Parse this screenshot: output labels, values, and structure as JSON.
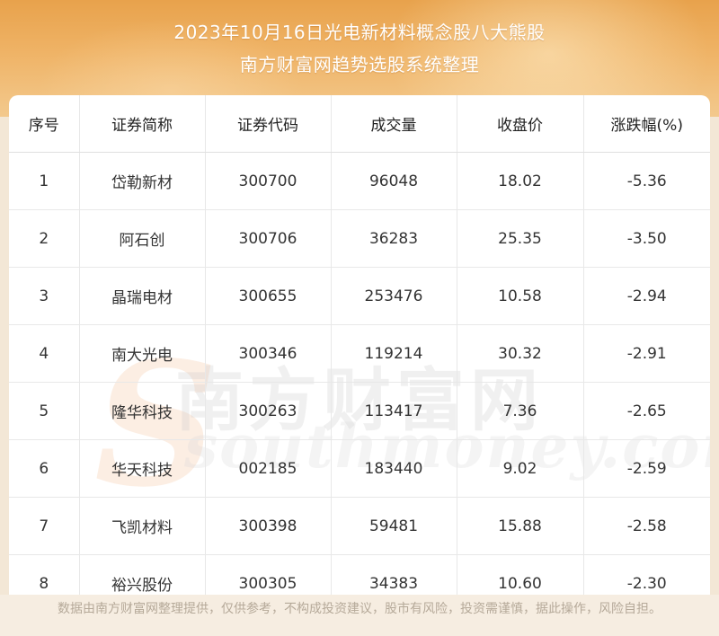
{
  "header": {
    "title_line1": "2023年10月16日光电新材料概念股八大熊股",
    "title_line2": "南方财富网趋势选股系统整理"
  },
  "table": {
    "columns": [
      "序号",
      "证券简称",
      "证券代码",
      "成交量",
      "收盘价",
      "涨跌幅(%)"
    ],
    "rows": [
      [
        "1",
        "岱勒新材",
        "300700",
        "96048",
        "18.02",
        "-5.36"
      ],
      [
        "2",
        "阿石创",
        "300706",
        "36283",
        "25.35",
        "-3.50"
      ],
      [
        "3",
        "晶瑞电材",
        "300655",
        "253476",
        "10.58",
        "-2.94"
      ],
      [
        "4",
        "南大光电",
        "300346",
        "119214",
        "30.32",
        "-2.91"
      ],
      [
        "5",
        "隆华科技",
        "300263",
        "113417",
        "7.36",
        "-2.65"
      ],
      [
        "6",
        "华天科技",
        "002185",
        "183440",
        "9.02",
        "-2.59"
      ],
      [
        "7",
        "飞凯材料",
        "300398",
        "59481",
        "15.88",
        "-2.58"
      ],
      [
        "8",
        "裕兴股份",
        "300305",
        "34383",
        "10.60",
        "-2.30"
      ]
    ]
  },
  "watermark": {
    "chinese": "南方财富网",
    "english": "southmoney.com"
  },
  "footer": {
    "disclaimer": "数据由南方财富网整理提供，仅供参考，不构成投资建议，股市有风险，投资需谨慎，据此操作，风险自担。"
  }
}
